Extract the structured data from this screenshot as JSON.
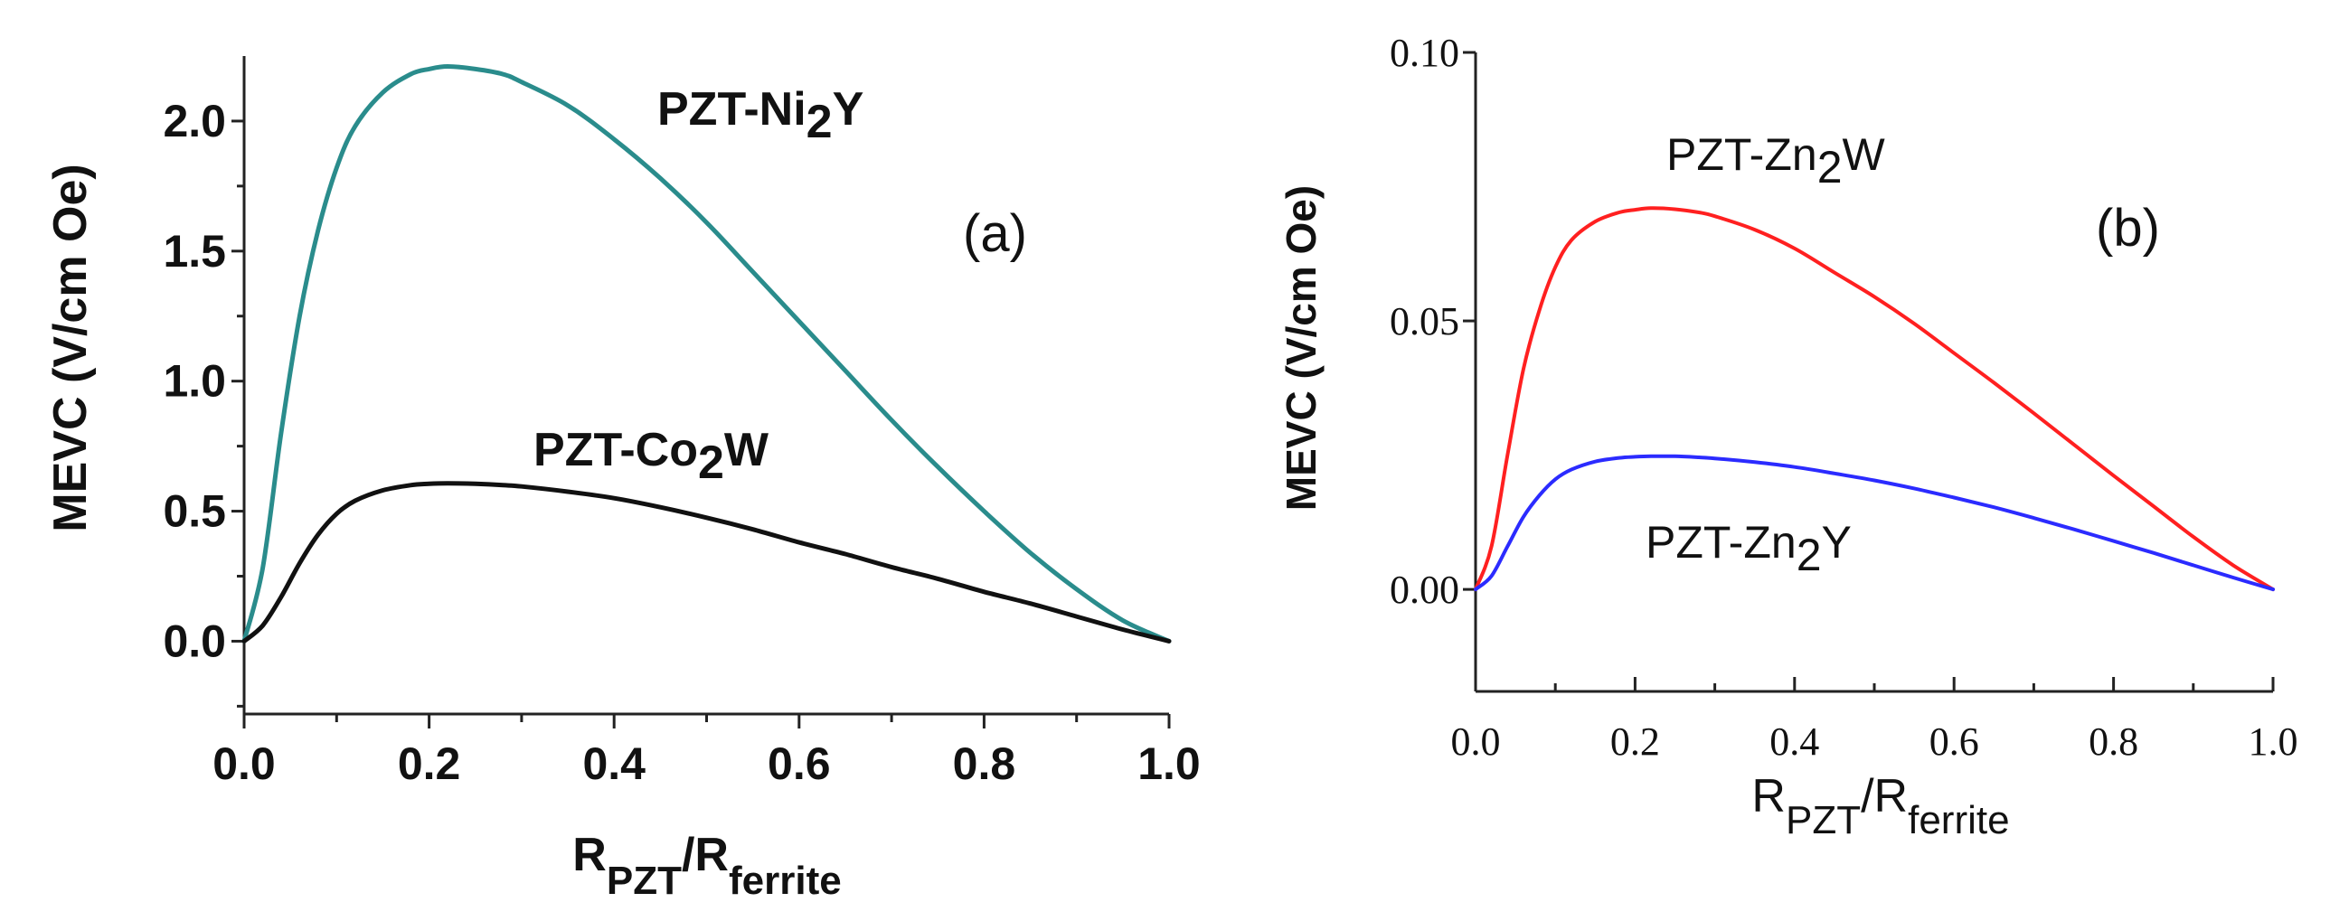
{
  "chart_data": [
    {
      "type": "line",
      "panel_label": "(a)",
      "ylabel": "MEVC (V/cm Oe)",
      "xlabel": {
        "main": "R",
        "sub1": "PZT",
        "sep": "/R",
        "sub2": "ferrite"
      },
      "xlim": [
        0.0,
        1.0
      ],
      "ylim": [
        -0.28,
        2.25
      ],
      "xticks": [
        "0.0",
        "0.2",
        "0.4",
        "0.6",
        "0.8",
        "1.0"
      ],
      "xtick_values": [
        0.0,
        0.2,
        0.4,
        0.6,
        0.8,
        1.0
      ],
      "yticks": [
        "0.0",
        "0.5",
        "1.0",
        "1.5",
        "2.0"
      ],
      "ytick_values": [
        0.0,
        0.5,
        1.0,
        1.5,
        2.0
      ],
      "series": [
        {
          "name": "PZT-Ni2Y",
          "label": {
            "a": "PZT-Ni",
            "sub": "2",
            "b": "Y"
          },
          "color": "#2a8c8c",
          "x": [
            0.0,
            0.02,
            0.04,
            0.06,
            0.08,
            0.1,
            0.12,
            0.15,
            0.18,
            0.2,
            0.22,
            0.25,
            0.28,
            0.3,
            0.35,
            0.4,
            0.45,
            0.5,
            0.55,
            0.6,
            0.65,
            0.7,
            0.75,
            0.8,
            0.85,
            0.9,
            0.95,
            1.0
          ],
          "y": [
            0.0,
            0.28,
            0.8,
            1.25,
            1.58,
            1.82,
            1.98,
            2.11,
            2.18,
            2.2,
            2.21,
            2.2,
            2.18,
            2.15,
            2.06,
            1.93,
            1.78,
            1.61,
            1.42,
            1.23,
            1.04,
            0.85,
            0.67,
            0.5,
            0.34,
            0.2,
            0.08,
            0.0
          ]
        },
        {
          "name": "PZT-Co2W",
          "label": {
            "a": "PZT-Co",
            "sub": "2",
            "b": "W"
          },
          "color": "#111111",
          "x": [
            0.0,
            0.02,
            0.04,
            0.06,
            0.08,
            0.1,
            0.12,
            0.15,
            0.18,
            0.2,
            0.22,
            0.25,
            0.28,
            0.3,
            0.35,
            0.4,
            0.45,
            0.5,
            0.55,
            0.6,
            0.65,
            0.7,
            0.75,
            0.8,
            0.85,
            0.9,
            0.95,
            1.0
          ],
          "y": [
            0.0,
            0.06,
            0.17,
            0.3,
            0.41,
            0.49,
            0.54,
            0.58,
            0.6,
            0.605,
            0.607,
            0.605,
            0.6,
            0.595,
            0.575,
            0.55,
            0.515,
            0.475,
            0.43,
            0.38,
            0.335,
            0.285,
            0.24,
            0.19,
            0.145,
            0.095,
            0.045,
            0.0
          ]
        }
      ]
    },
    {
      "type": "line",
      "panel_label": "(b)",
      "ylabel": "MEVC (V/cm Oe)",
      "xlabel": {
        "main": "R",
        "sub1": "PZT",
        "sep": "/R",
        "sub2": "ferrite"
      },
      "xlim": [
        0.0,
        1.0
      ],
      "ylim": [
        -0.019,
        0.1
      ],
      "xticks": [
        "0.0",
        "0.2",
        "0.4",
        "0.6",
        "0.8",
        "1.0"
      ],
      "xtick_values": [
        0.0,
        0.2,
        0.4,
        0.6,
        0.8,
        1.0
      ],
      "yticks": [
        "0.00",
        "0.05",
        "0.10"
      ],
      "ytick_values": [
        0.0,
        0.05,
        0.1
      ],
      "series": [
        {
          "name": "PZT-Zn2W",
          "label": {
            "a": "PZT-Zn",
            "sub": "2",
            "b": "W"
          },
          "color": "#ff2020",
          "x": [
            0.0,
            0.02,
            0.04,
            0.06,
            0.08,
            0.1,
            0.12,
            0.15,
            0.18,
            0.2,
            0.22,
            0.25,
            0.28,
            0.3,
            0.35,
            0.4,
            0.45,
            0.5,
            0.55,
            0.6,
            0.65,
            0.7,
            0.75,
            0.8,
            0.85,
            0.9,
            0.95,
            1.0
          ],
          "y": [
            0.0,
            0.008,
            0.025,
            0.041,
            0.052,
            0.06,
            0.065,
            0.0685,
            0.0702,
            0.0707,
            0.071,
            0.0708,
            0.0702,
            0.0695,
            0.067,
            0.0635,
            0.059,
            0.0545,
            0.0495,
            0.044,
            0.0385,
            0.0328,
            0.027,
            0.0212,
            0.0155,
            0.0098,
            0.0045,
            0.0
          ]
        },
        {
          "name": "PZT-Zn2Y",
          "label": {
            "a": "PZT-Zn",
            "sub": "2",
            "b": "Y"
          },
          "color": "#2b2bff",
          "x": [
            0.0,
            0.02,
            0.04,
            0.06,
            0.08,
            0.1,
            0.12,
            0.15,
            0.18,
            0.2,
            0.22,
            0.25,
            0.28,
            0.3,
            0.35,
            0.4,
            0.45,
            0.5,
            0.55,
            0.6,
            0.65,
            0.7,
            0.75,
            0.8,
            0.85,
            0.9,
            0.95,
            1.0
          ],
          "y": [
            0.0,
            0.0025,
            0.008,
            0.0135,
            0.0175,
            0.0205,
            0.0223,
            0.0238,
            0.0245,
            0.0247,
            0.0248,
            0.0248,
            0.0246,
            0.0244,
            0.0237,
            0.0228,
            0.0216,
            0.0203,
            0.0188,
            0.0171,
            0.0153,
            0.0133,
            0.0112,
            0.009,
            0.0068,
            0.0045,
            0.0022,
            0.0
          ]
        }
      ]
    }
  ]
}
